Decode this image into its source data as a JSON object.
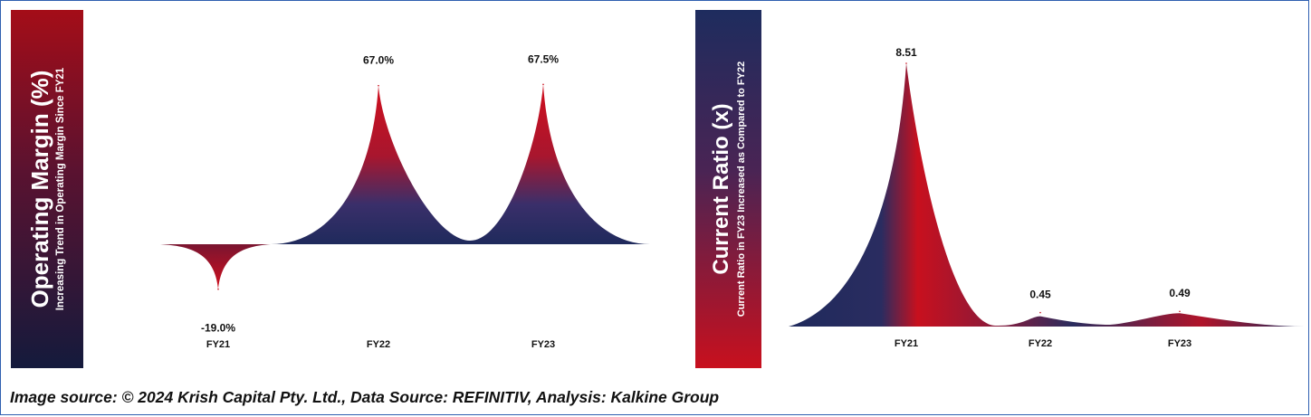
{
  "chart_data": [
    {
      "type": "area",
      "title": "Operating Margin (%)",
      "subtitle": "Increasing Trend in Operating Margin Since FY21",
      "categories": [
        "FY21",
        "FY22",
        "FY23"
      ],
      "values": [
        -19.0,
        67.0,
        67.5
      ],
      "data_labels": [
        "-19.0%",
        "67.0%",
        "67.5%"
      ],
      "colors": {
        "peak": "#c8101e",
        "base": "#1f2a5c"
      },
      "grid": false
    },
    {
      "type": "area",
      "title": "Current Ratio (x)",
      "subtitle": "Current Ratio in FY23 Increased as Compared to FY22",
      "categories": [
        "FY21",
        "FY22",
        "FY23"
      ],
      "values": [
        8.51,
        0.45,
        0.49
      ],
      "data_labels": [
        "8.51",
        "0.45",
        "0.49"
      ],
      "colors": {
        "peak": "#c8101e",
        "base": "#1f2a5c"
      },
      "grid": false
    }
  ],
  "caption": "Image source: © 2024 Krish Capital Pty. Ltd., Data Source: REFINITIV, Analysis: Kalkine Group"
}
